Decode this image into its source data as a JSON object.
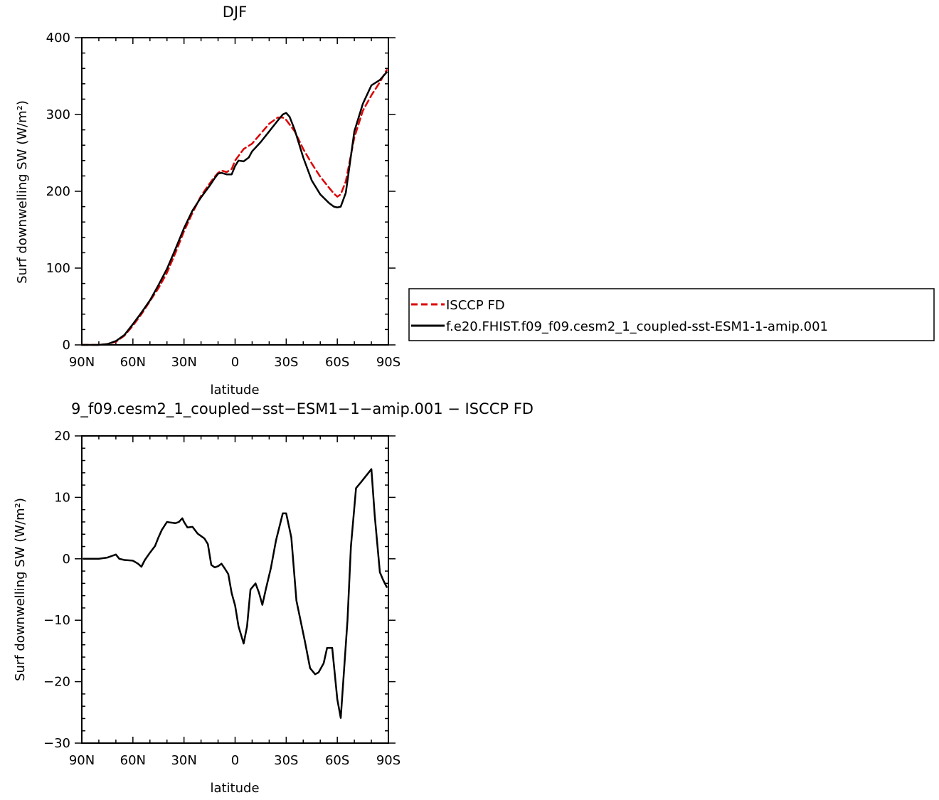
{
  "chart_data": [
    {
      "type": "line",
      "title": "DJF",
      "xlabel": "latitude",
      "ylabel": "Surf downwelling SW (W/m²)",
      "xlim": [
        90,
        -90
      ],
      "ylim": [
        0,
        400
      ],
      "x_ticks": [
        {
          "value": 90,
          "label": "90N"
        },
        {
          "value": 60,
          "label": "60N"
        },
        {
          "value": 30,
          "label": "30N"
        },
        {
          "value": 0,
          "label": "0"
        },
        {
          "value": -30,
          "label": "30S"
        },
        {
          "value": -60,
          "label": "60S"
        },
        {
          "value": -90,
          "label": "90S"
        }
      ],
      "y_ticks": [
        {
          "value": 0,
          "label": "0"
        },
        {
          "value": 100,
          "label": "100"
        },
        {
          "value": 200,
          "label": "200"
        },
        {
          "value": 300,
          "label": "300"
        },
        {
          "value": 400,
          "label": "400"
        }
      ],
      "legend_position": "right",
      "series": [
        {
          "name": "ISCCP FD",
          "color": "#dd0000",
          "dash": "dashed",
          "x": [
            90,
            85,
            80,
            75,
            70,
            65,
            60,
            55,
            50,
            45,
            40,
            35,
            30,
            25,
            20,
            15,
            12,
            10,
            8,
            5,
            2,
            0,
            -5,
            -10,
            -15,
            -20,
            -25,
            -28,
            -30,
            -35,
            -40,
            -45,
            -50,
            -55,
            -58,
            -60,
            -62,
            -65,
            -70,
            -75,
            -80,
            -85,
            -89
          ],
          "y": [
            0,
            0,
            0,
            1,
            4,
            12,
            25,
            40,
            57,
            74,
            94,
            120,
            148,
            172,
            194,
            210,
            219,
            224,
            227,
            225,
            229,
            240,
            255,
            262,
            275,
            288,
            296,
            296,
            293,
            278,
            255,
            236,
            219,
            205,
            197,
            193,
            196,
            213,
            270,
            305,
            325,
            342,
            358
          ]
        },
        {
          "name": "f.e20.FHIST.f09_f09.cesm2_1_coupled-sst-ESM1-1-amip.001",
          "color": "#000000",
          "dash": "solid",
          "x": [
            90,
            85,
            80,
            75,
            70,
            65,
            60,
            55,
            50,
            45,
            40,
            35,
            30,
            25,
            20,
            15,
            12,
            10,
            8,
            5,
            2,
            0,
            -2,
            -5,
            -8,
            -10,
            -15,
            -20,
            -25,
            -28,
            -30,
            -32,
            -35,
            -40,
            -45,
            -50,
            -55,
            -58,
            -60,
            -62,
            -65,
            -70,
            -75,
            -80,
            -85,
            -89
          ],
          "y": [
            0,
            0,
            0,
            1,
            5,
            13,
            27,
            42,
            58,
            78,
            99,
            125,
            152,
            175,
            192,
            207,
            217,
            223,
            224,
            222,
            222,
            233,
            240,
            239,
            244,
            252,
            264,
            278,
            292,
            300,
            302,
            297,
            280,
            244,
            214,
            196,
            185,
            180,
            179,
            180,
            198,
            278,
            314,
            338,
            345,
            355
          ]
        }
      ]
    },
    {
      "type": "line",
      "title": "9_f09.cesm2_1_coupled−sst−ESM1−1−amip.001 − ISCCP FD",
      "xlabel": "latitude",
      "ylabel": "Surf downwelling SW (W/m²)",
      "xlim": [
        90,
        -90
      ],
      "ylim": [
        -30,
        20
      ],
      "x_ticks": [
        {
          "value": 90,
          "label": "90N"
        },
        {
          "value": 60,
          "label": "60N"
        },
        {
          "value": 30,
          "label": "30N"
        },
        {
          "value": 0,
          "label": "0"
        },
        {
          "value": -30,
          "label": "30S"
        },
        {
          "value": -60,
          "label": "60S"
        },
        {
          "value": -90,
          "label": "90S"
        }
      ],
      "y_ticks": [
        {
          "value": -30,
          "label": "−30"
        },
        {
          "value": -20,
          "label": "−20"
        },
        {
          "value": -10,
          "label": "−10"
        },
        {
          "value": 0,
          "label": "0"
        },
        {
          "value": 10,
          "label": "10"
        },
        {
          "value": 20,
          "label": "20"
        }
      ],
      "series": [
        {
          "color": "#000000",
          "dash": "solid",
          "x": [
            89,
            85,
            80,
            75,
            72,
            70,
            68,
            65,
            60,
            57,
            55,
            53,
            50,
            47,
            45,
            43,
            40,
            38,
            35,
            33,
            31,
            30,
            28,
            25,
            22,
            20,
            18,
            16,
            14,
            12,
            10,
            8,
            6,
            4,
            2,
            0,
            -2,
            -5,
            -7,
            -9,
            -12,
            -14,
            -16,
            -18,
            -21,
            -24,
            -28,
            -30,
            -33,
            -36,
            -41,
            -44,
            -47,
            -49,
            -52,
            -54,
            -57,
            -60,
            -62,
            -66,
            -68,
            -71,
            -74,
            -80,
            -82,
            -85,
            -87,
            -89
          ],
          "y": [
            0,
            0,
            0,
            0.2,
            0.5,
            0.7,
            0,
            -0.2,
            -0.3,
            -0.8,
            -1.3,
            -0.2,
            1.0,
            2.1,
            3.5,
            4.7,
            6.0,
            5.9,
            5.8,
            6.0,
            6.6,
            6.0,
            5.1,
            5.2,
            4.1,
            3.7,
            3.3,
            2.4,
            -1.0,
            -1.4,
            -1.2,
            -0.8,
            -1.6,
            -2.5,
            -5.6,
            -7.6,
            -11.0,
            -13.8,
            -11.0,
            -5.0,
            -4.0,
            -5.5,
            -7.5,
            -5.0,
            -1.5,
            3.0,
            7.4,
            7.4,
            3.5,
            -6.8,
            -13.5,
            -17.8,
            -18.8,
            -18.5,
            -17.0,
            -14.5,
            -14.5,
            -22.9,
            -25.9,
            -10.0,
            2.0,
            11.5,
            12.5,
            14.6,
            7.0,
            -2.2,
            -3.5,
            -4.6
          ]
        }
      ]
    }
  ]
}
